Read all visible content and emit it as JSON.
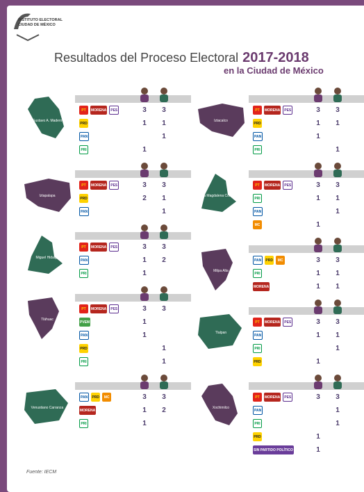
{
  "header": {
    "institution": "INSTITUTO ELECTORAL",
    "city": "CIUDAD DE MÉXICO"
  },
  "title": "Resultados del Proceso Electoral",
  "year": "2017-2018",
  "subtitle": "en la Ciudad de México",
  "columns": [
    [
      {
        "name": "Gustavo A. Madero",
        "color": "#2f6b55",
        "rows": [
          {
            "parties": [
              "PT",
              "MORENA",
              "PES"
            ],
            "women": 3,
            "men": 3
          },
          {
            "parties": [
              "PRD"
            ],
            "women": 1,
            "men": 1
          },
          {
            "parties": [
              "PAN"
            ],
            "women": null,
            "men": 1
          },
          {
            "parties": [
              "PRI"
            ],
            "women": 1,
            "men": null
          }
        ]
      },
      {
        "name": "Iztapalapa",
        "color": "#5a3b5c",
        "rows": [
          {
            "parties": [
              "PT",
              "MORENA",
              "PES"
            ],
            "women": 3,
            "men": 3
          },
          {
            "parties": [
              "PRD"
            ],
            "women": 2,
            "men": 1
          },
          {
            "parties": [
              "PAN"
            ],
            "women": null,
            "men": 1
          }
        ]
      },
      {
        "name": "Miguel Hidalgo",
        "color": "#2f6b55",
        "rows": [
          {
            "parties": [
              "PT",
              "MORENA",
              "PES"
            ],
            "women": 3,
            "men": 3
          },
          {
            "parties": [
              "PAN"
            ],
            "women": 1,
            "men": 2
          },
          {
            "parties": [
              "PRI"
            ],
            "women": 1,
            "men": null
          }
        ]
      },
      {
        "name": "Tláhuac",
        "color": "#5a3b5c",
        "rows": [
          {
            "parties": [
              "PT",
              "MORENA",
              "PES"
            ],
            "women": 3,
            "men": 3
          },
          {
            "parties": [
              "PVEM"
            ],
            "women": 1,
            "men": null
          },
          {
            "parties": [
              "PAN"
            ],
            "women": 1,
            "men": null
          },
          {
            "parties": [
              "PRD"
            ],
            "women": null,
            "men": 1
          },
          {
            "parties": [
              "PRI"
            ],
            "women": null,
            "men": 1
          }
        ]
      },
      {
        "name": "Venustiano Carranza",
        "color": "#2f6b55",
        "rows": [
          {
            "parties": [
              "PAN",
              "PRD",
              "MC"
            ],
            "women": 3,
            "men": 3
          },
          {
            "parties": [
              "MORENA"
            ],
            "women": 1,
            "men": 2
          },
          {
            "parties": [
              "PRI"
            ],
            "women": 1,
            "men": null
          }
        ]
      }
    ],
    [
      {
        "name": "Iztacalco",
        "color": "#5a3b5c",
        "rows": [
          {
            "parties": [
              "PT",
              "MORENA",
              "PES"
            ],
            "women": 3,
            "men": 3
          },
          {
            "parties": [
              "PRD"
            ],
            "women": 1,
            "men": 1
          },
          {
            "parties": [
              "PAN"
            ],
            "women": 1,
            "men": null
          },
          {
            "parties": [
              "PRI"
            ],
            "women": null,
            "men": 1
          }
        ]
      },
      {
        "name": "La Magdalena Contreras",
        "color": "#2f6b55",
        "rows": [
          {
            "parties": [
              "PT",
              "MORENA",
              "PES"
            ],
            "women": 3,
            "men": 3
          },
          {
            "parties": [
              "PRI"
            ],
            "women": 1,
            "men": 1
          },
          {
            "parties": [
              "PAN"
            ],
            "women": null,
            "men": 1
          },
          {
            "parties": [
              "MC"
            ],
            "women": 1,
            "men": null
          }
        ]
      },
      {
        "name": "Milpa Alta",
        "color": "#5a3b5c",
        "rows": [
          {
            "parties": [
              "PAN",
              "PRD",
              "MC"
            ],
            "women": 3,
            "men": 3
          },
          {
            "parties": [
              "PRI"
            ],
            "women": 1,
            "men": 1
          },
          {
            "parties": [
              "MORENA"
            ],
            "women": 1,
            "men": 1
          }
        ]
      },
      {
        "name": "Tlalpan",
        "color": "#2f6b55",
        "rows": [
          {
            "parties": [
              "PT",
              "MORENA",
              "PES"
            ],
            "women": 3,
            "men": 3
          },
          {
            "parties": [
              "PAN"
            ],
            "women": 1,
            "men": 1
          },
          {
            "parties": [
              "PRI"
            ],
            "women": null,
            "men": 1
          },
          {
            "parties": [
              "PRD"
            ],
            "women": 1,
            "men": null
          }
        ]
      },
      {
        "name": "Xochimilco",
        "color": "#5a3b5c",
        "rows": [
          {
            "parties": [
              "PT",
              "MORENA",
              "PES"
            ],
            "women": 3,
            "men": 3
          },
          {
            "parties": [
              "PAN"
            ],
            "women": null,
            "men": 1
          },
          {
            "parties": [
              "PRI"
            ],
            "women": null,
            "men": 1
          },
          {
            "parties": [
              "PRD"
            ],
            "women": 1,
            "men": null
          },
          {
            "parties": [
              "SIN PARTIDO POLÍTICO"
            ],
            "women": 1,
            "men": null
          }
        ]
      }
    ]
  ],
  "source": "Fuente: IECM"
}
